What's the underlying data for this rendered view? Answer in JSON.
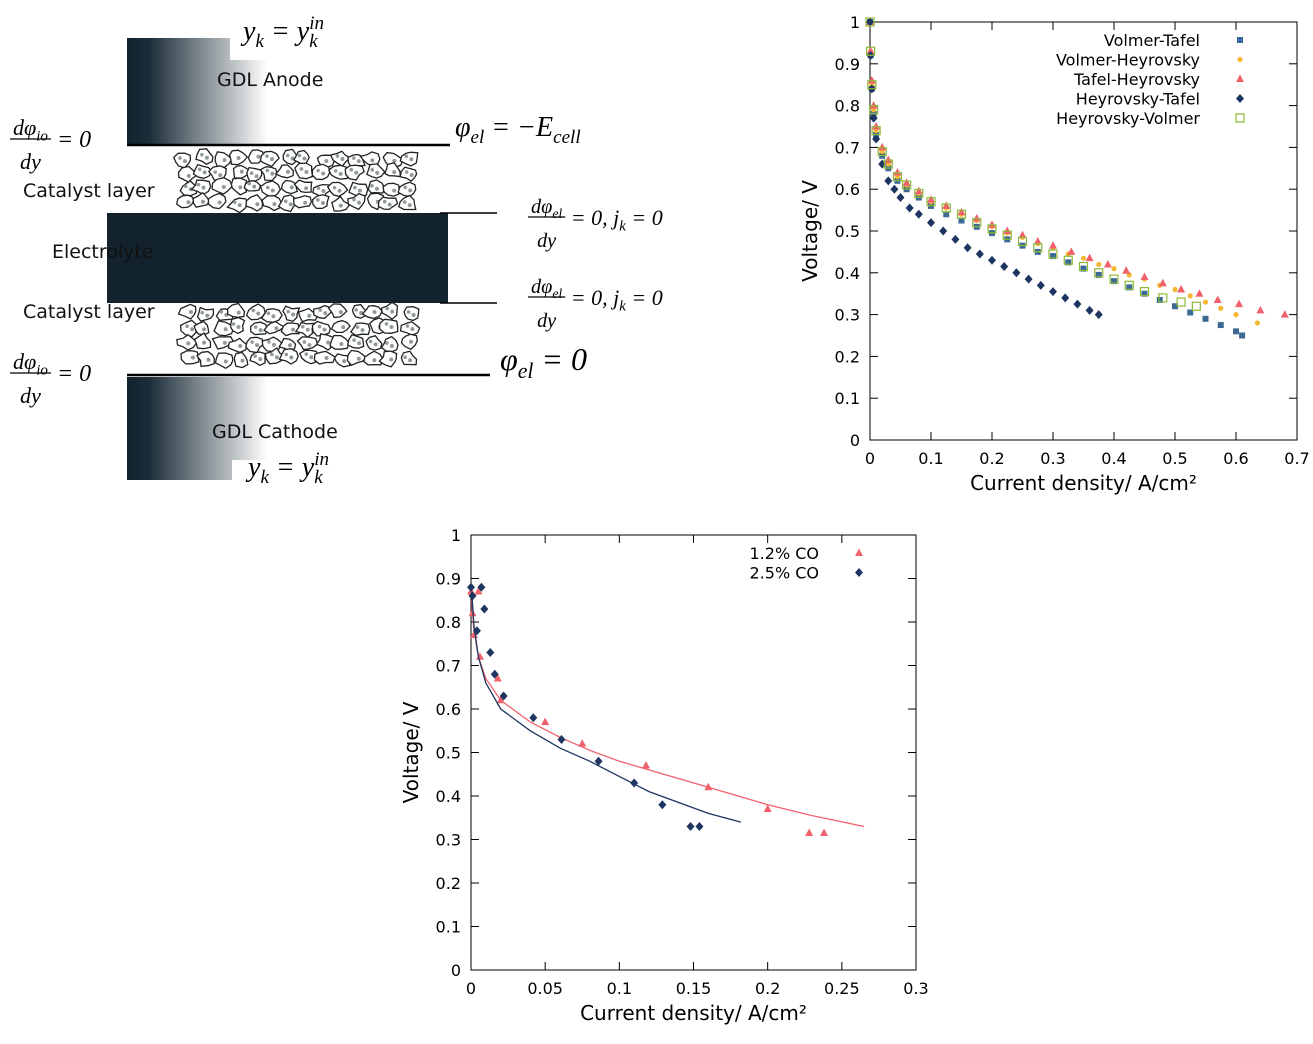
{
  "diagram": {
    "regions": [
      "GDL Anode",
      "Catalyst layer",
      "Electrolyte",
      "Catalyst layer",
      "GDL Cathode"
    ],
    "equations": [
      [
        {
          "text": "y",
          "sub": "k"
        },
        {
          "text": " = "
        },
        {
          "text": "y",
          "sub": "k",
          "sup": "in"
        }
      ],
      [
        {
          "num": [
            {
              "text": "dφ",
              "sub": "io"
            }
          ],
          "den": [
            {
              "text": "dy"
            }
          ]
        },
        {
          "text": " = 0"
        }
      ],
      [
        {
          "text": "φ",
          "sub": "el"
        },
        {
          "text": " = −E",
          "sub": "cell"
        }
      ],
      [
        {
          "num": [
            {
              "text": "dφ",
              "sub": "el"
            }
          ],
          "den": [
            {
              "text": "dy"
            }
          ]
        },
        {
          "text": " = 0, j",
          "sub": "k"
        },
        {
          "text": " = 0"
        }
      ],
      [
        {
          "num": [
            {
              "text": "dφ",
              "sub": "el"
            }
          ],
          "den": [
            {
              "text": "dy"
            }
          ]
        },
        {
          "text": " = 0, j",
          "sub": "k"
        },
        {
          "text": " = 0"
        }
      ],
      [
        {
          "num": [
            {
              "text": "dφ",
              "sub": "io"
            }
          ],
          "den": [
            {
              "text": "dy"
            }
          ]
        },
        {
          "text": " = 0"
        }
      ],
      [
        {
          "text": "φ",
          "sub": "el"
        },
        {
          "text": " = 0"
        }
      ],
      [
        {
          "text": "y",
          "sub": "k"
        },
        {
          "text": " = "
        },
        {
          "text": "y",
          "sub": "k",
          "sup": "in"
        }
      ]
    ]
  },
  "chart_data": [
    {
      "type": "scatter",
      "xlabel": "Current density/ A/cm²",
      "ylabel": "Voltage/ V",
      "xlim": [
        0,
        0.7
      ],
      "ylim": [
        0,
        1
      ],
      "xticks": [
        0,
        0.1,
        0.2,
        0.3,
        0.4,
        0.5,
        0.6,
        0.7
      ],
      "yticks": [
        0,
        0.1,
        0.2,
        0.3,
        0.4,
        0.5,
        0.6,
        0.7,
        0.8,
        0.9,
        1
      ],
      "legend": "top-right",
      "series": [
        {
          "name": "Volmer-Tafel",
          "color": "#3d6a94",
          "marker": "square",
          "x": [
            0,
            0.001,
            0.003,
            0.006,
            0.01,
            0.02,
            0.03,
            0.045,
            0.06,
            0.08,
            0.1,
            0.125,
            0.15,
            0.175,
            0.2,
            0.225,
            0.25,
            0.275,
            0.3,
            0.325,
            0.35,
            0.375,
            0.4,
            0.425,
            0.45,
            0.475,
            0.5,
            0.525,
            0.55,
            0.575,
            0.6,
            0.61
          ],
          "values": [
            1,
            0.92,
            0.84,
            0.78,
            0.73,
            0.68,
            0.65,
            0.62,
            0.6,
            0.58,
            0.56,
            0.54,
            0.525,
            0.51,
            0.495,
            0.48,
            0.465,
            0.45,
            0.44,
            0.425,
            0.41,
            0.395,
            0.38,
            0.365,
            0.35,
            0.335,
            0.32,
            0.305,
            0.29,
            0.275,
            0.26,
            0.25
          ]
        },
        {
          "name": "Volmer-Heyrovsky",
          "color": "#f5b731",
          "marker": "dot",
          "x": [
            0,
            0.001,
            0.003,
            0.006,
            0.01,
            0.02,
            0.03,
            0.045,
            0.06,
            0.08,
            0.1,
            0.125,
            0.15,
            0.175,
            0.2,
            0.225,
            0.25,
            0.275,
            0.3,
            0.325,
            0.35,
            0.375,
            0.4,
            0.425,
            0.45,
            0.475,
            0.5,
            0.525,
            0.55,
            0.575,
            0.6,
            0.635
          ],
          "values": [
            1,
            0.93,
            0.85,
            0.79,
            0.74,
            0.69,
            0.66,
            0.63,
            0.61,
            0.59,
            0.57,
            0.555,
            0.54,
            0.525,
            0.51,
            0.495,
            0.485,
            0.47,
            0.46,
            0.445,
            0.435,
            0.42,
            0.41,
            0.395,
            0.385,
            0.37,
            0.36,
            0.345,
            0.33,
            0.315,
            0.3,
            0.28
          ]
        },
        {
          "name": "Tafel-Heyrovsky",
          "color": "#f0616b",
          "marker": "triangle",
          "x": [
            0,
            0.001,
            0.003,
            0.006,
            0.01,
            0.02,
            0.03,
            0.045,
            0.06,
            0.08,
            0.1,
            0.125,
            0.15,
            0.175,
            0.2,
            0.225,
            0.25,
            0.275,
            0.3,
            0.33,
            0.36,
            0.39,
            0.42,
            0.45,
            0.48,
            0.51,
            0.54,
            0.57,
            0.605,
            0.64,
            0.68
          ],
          "values": [
            1,
            0.93,
            0.86,
            0.8,
            0.75,
            0.7,
            0.67,
            0.64,
            0.615,
            0.595,
            0.575,
            0.56,
            0.545,
            0.53,
            0.515,
            0.5,
            0.49,
            0.475,
            0.465,
            0.45,
            0.435,
            0.42,
            0.405,
            0.39,
            0.375,
            0.36,
            0.35,
            0.335,
            0.325,
            0.31,
            0.3
          ]
        },
        {
          "name": "Heyrovsky-Tafel",
          "color": "#1d3560",
          "marker": "diamond",
          "x": [
            0,
            0.001,
            0.003,
            0.006,
            0.01,
            0.02,
            0.03,
            0.04,
            0.05,
            0.065,
            0.08,
            0.1,
            0.12,
            0.14,
            0.16,
            0.18,
            0.2,
            0.22,
            0.24,
            0.26,
            0.28,
            0.3,
            0.32,
            0.34,
            0.36,
            0.375
          ],
          "values": [
            1,
            0.92,
            0.84,
            0.77,
            0.72,
            0.66,
            0.62,
            0.6,
            0.58,
            0.555,
            0.54,
            0.52,
            0.5,
            0.48,
            0.46,
            0.445,
            0.43,
            0.415,
            0.4,
            0.385,
            0.37,
            0.355,
            0.34,
            0.325,
            0.31,
            0.3
          ]
        },
        {
          "name": "Heyrovsky-Volmer",
          "color": "#8cba34",
          "marker": "open-square",
          "x": [
            0,
            0.001,
            0.003,
            0.006,
            0.01,
            0.02,
            0.03,
            0.045,
            0.06,
            0.08,
            0.1,
            0.125,
            0.15,
            0.175,
            0.2,
            0.225,
            0.25,
            0.275,
            0.3,
            0.325,
            0.35,
            0.375,
            0.4,
            0.425,
            0.45,
            0.48,
            0.51,
            0.535
          ],
          "values": [
            1,
            0.93,
            0.85,
            0.79,
            0.74,
            0.69,
            0.66,
            0.63,
            0.61,
            0.59,
            0.57,
            0.555,
            0.54,
            0.52,
            0.505,
            0.49,
            0.475,
            0.46,
            0.445,
            0.43,
            0.415,
            0.4,
            0.385,
            0.37,
            0.355,
            0.34,
            0.33,
            0.32
          ]
        }
      ]
    },
    {
      "type": "scatter",
      "xlabel": "Current density/ A/cm²",
      "ylabel": "Voltage/ V",
      "xlim": [
        0,
        0.3
      ],
      "ylim": [
        0,
        1
      ],
      "xticks": [
        0,
        0.05,
        0.1,
        0.15,
        0.2,
        0.25,
        0.3
      ],
      "yticks": [
        0,
        0.1,
        0.2,
        0.3,
        0.4,
        0.5,
        0.6,
        0.7,
        0.8,
        0.9,
        1
      ],
      "legend": "top-right",
      "series": [
        {
          "name": "1.2% CO",
          "color": "#f0616b",
          "marker": "triangle",
          "x": [
            0,
            0.001,
            0.002,
            0.005,
            0.006,
            0.018,
            0.02,
            0.05,
            0.075,
            0.118,
            0.16,
            0.2,
            0.228,
            0.238
          ],
          "values": [
            0.87,
            0.82,
            0.77,
            0.87,
            0.72,
            0.67,
            0.62,
            0.57,
            0.52,
            0.47,
            0.42,
            0.37,
            0.315,
            0.315
          ],
          "fit_x": [
            0.0005,
            0.002,
            0.005,
            0.01,
            0.02,
            0.04,
            0.06,
            0.08,
            0.1,
            0.13,
            0.16,
            0.2,
            0.23,
            0.265
          ],
          "fit_values": [
            0.85,
            0.78,
            0.72,
            0.67,
            0.62,
            0.57,
            0.535,
            0.505,
            0.48,
            0.45,
            0.42,
            0.38,
            0.355,
            0.33
          ]
        },
        {
          "name": "2.5% CO",
          "color": "#1d3560",
          "marker": "diamond",
          "x": [
            0,
            0.001,
            0.004,
            0.007,
            0.009,
            0.013,
            0.016,
            0.022,
            0.042,
            0.061,
            0.086,
            0.11,
            0.129,
            0.148,
            0.154
          ],
          "values": [
            0.88,
            0.86,
            0.78,
            0.88,
            0.83,
            0.73,
            0.68,
            0.63,
            0.58,
            0.53,
            0.48,
            0.43,
            0.38,
            0.33,
            0.33
          ],
          "fit_x": [
            0.0005,
            0.002,
            0.005,
            0.01,
            0.02,
            0.04,
            0.06,
            0.08,
            0.1,
            0.12,
            0.14,
            0.16,
            0.182
          ],
          "fit_values": [
            0.87,
            0.79,
            0.72,
            0.66,
            0.6,
            0.55,
            0.51,
            0.48,
            0.445,
            0.41,
            0.385,
            0.36,
            0.34
          ]
        }
      ]
    }
  ]
}
